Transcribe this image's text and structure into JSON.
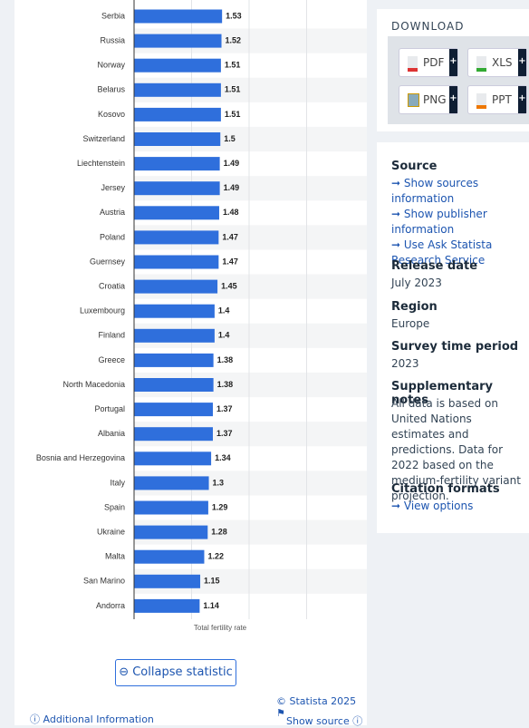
{
  "chart_data": {
    "type": "bar",
    "orientation": "horizontal",
    "categories": [
      "Serbia",
      "Russia",
      "Norway",
      "Belarus",
      "Kosovo",
      "Switzerland",
      "Liechtenstein",
      "Jersey",
      "Austria",
      "Poland",
      "Guernsey",
      "Croatia",
      "Luxembourg",
      "Finland",
      "Greece",
      "North Macedonia",
      "Portugal",
      "Albania",
      "Bosnia and Herzegovina",
      "Italy",
      "Spain",
      "Ukraine",
      "Malta",
      "San Marino",
      "Andorra"
    ],
    "values": [
      1.53,
      1.52,
      1.51,
      1.51,
      1.51,
      1.5,
      1.49,
      1.49,
      1.48,
      1.47,
      1.47,
      1.45,
      1.4,
      1.4,
      1.38,
      1.38,
      1.37,
      1.37,
      1.34,
      1.3,
      1.29,
      1.28,
      1.22,
      1.15,
      1.14
    ],
    "color": "#2f6fdc",
    "x_label": "Total fertility rate",
    "xlim": [
      0,
      4
    ],
    "xticks": [
      1,
      2,
      3
    ],
    "grid": true
  },
  "footer": {
    "collapse": "Collapse statistic",
    "copyright": "© Statista 2025",
    "additional": "Additional Information",
    "show_source": "Show source"
  },
  "download": {
    "title": "DOWNLOAD",
    "buttons": [
      "PDF",
      "XLS",
      "PNG",
      "PPT"
    ],
    "plus": "+"
  },
  "details": {
    "source_title": "Source",
    "source_links": [
      "Show sources information",
      "Show publisher information",
      "Use Ask Statista Research Service"
    ],
    "release_title": "Release date",
    "release": "July 2023",
    "region_title": "Region",
    "region": "Europe",
    "survey_title": "Survey time period",
    "survey": "2023",
    "notes_title": "Supplementary notes",
    "notes": "All data is based on United Nations estimates and predictions. Data for 2022 based on the medium-fertility variant projection.",
    "citation_title": "Citation formats",
    "citation_link": "View options"
  }
}
